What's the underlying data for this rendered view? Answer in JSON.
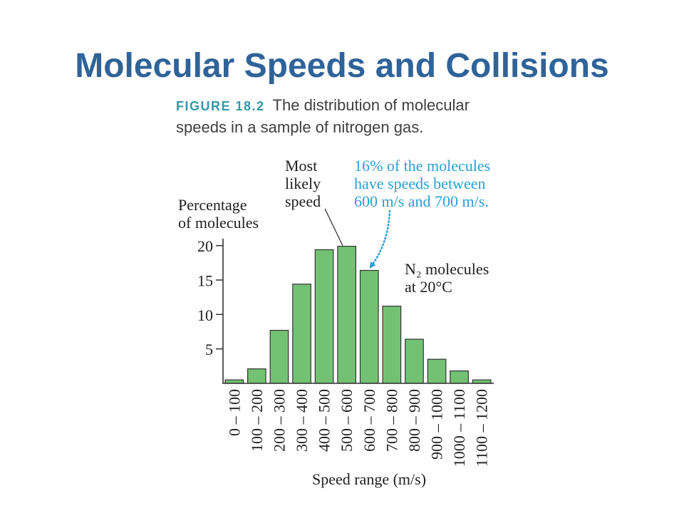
{
  "slide": {
    "title": "Molecular Speeds and Collisions"
  },
  "figure": {
    "label": "FIGURE 18.2",
    "caption_lines": [
      "The distribution of molecular",
      "speeds in a sample of nitrogen gas."
    ]
  },
  "colors": {
    "title": "#2f6399",
    "figure_label": "#3597a8",
    "caption": "#3f3f3f",
    "bar_fill": "#73c274",
    "bar_outline": "#333333",
    "highlight": "#2a9fd6"
  },
  "chart_data": {
    "type": "bar",
    "categories": [
      "0 – 100",
      "100 – 200",
      "200 – 300",
      "300 – 400",
      "400 – 500",
      "500 – 600",
      "600 – 700",
      "700 – 800",
      "800 – 900",
      "900 – 1000",
      "1000 – 1100",
      "1100 – 1200"
    ],
    "values": [
      0.5,
      2.1,
      7.7,
      14.4,
      19.4,
      19.9,
      16.4,
      11.2,
      6.4,
      3.5,
      1.8,
      0.5
    ],
    "xlabel": "Speed range (m/s)",
    "ylabel": [
      "Percentage",
      "of molecules"
    ],
    "ylim": [
      0,
      21
    ],
    "yticks": [
      5,
      10,
      15,
      20
    ],
    "grid": false,
    "annotations": [
      {
        "lines": [
          "Most",
          "likely",
          "speed"
        ]
      },
      {
        "lines": [
          "16% of the molecules",
          "have speeds between",
          "600 m/s and 700 m/s."
        ]
      },
      {
        "lines": [
          "N₂ molecules",
          "at 20°C"
        ]
      }
    ]
  }
}
